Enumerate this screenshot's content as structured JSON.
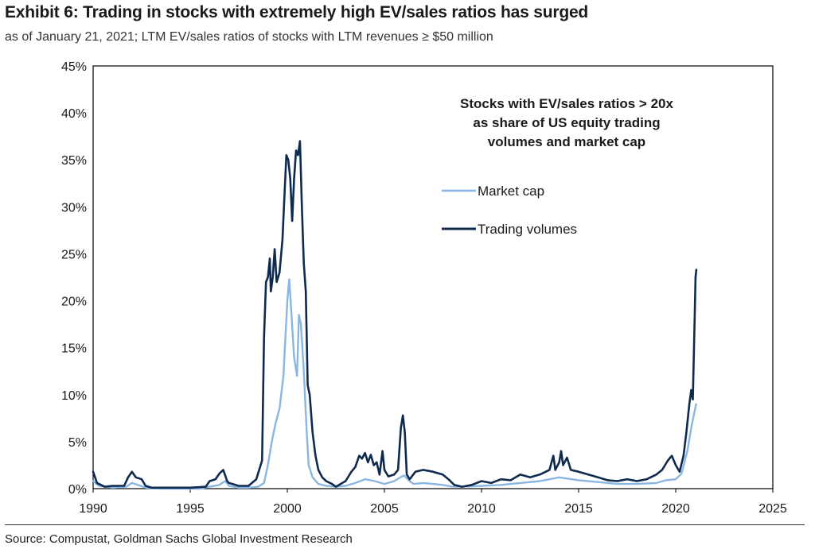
{
  "title": "Exhibit 6: Trading in stocks with extremely high EV/sales ratios has surged",
  "subtitle": "as of January 21, 2021; LTM EV/sales ratios of stocks with LTM revenues ≥ $50 million",
  "source": "Source: Compustat, Goldman Sachs Global Investment Research",
  "colors": {
    "market_cap": "#8ab6e2",
    "trading_volumes": "#0f2a4f",
    "axis": "#000000",
    "text": "#1a1a1a"
  },
  "chart_data": {
    "type": "line",
    "legend_title": [
      "Stocks with EV/sales ratios > 20x",
      "as share of US equity trading",
      "volumes and market cap"
    ],
    "legend_position": "upper-right inside plot",
    "grid": false,
    "xlim": [
      1990,
      2025
    ],
    "ylim": [
      0,
      45
    ],
    "x_ticks": [
      "1990",
      "1995",
      "2000",
      "2005",
      "2010",
      "2015",
      "2020",
      "2025"
    ],
    "y_ticks": [
      "0%",
      "5%",
      "10%",
      "15%",
      "20%",
      "25%",
      "30%",
      "35%",
      "40%",
      "45%"
    ],
    "series": [
      {
        "name": "Market cap",
        "color": "#8ab6e2",
        "points": [
          [
            1990.0,
            0.8
          ],
          [
            1990.3,
            0.3
          ],
          [
            1991.0,
            0.1
          ],
          [
            1991.7,
            0.2
          ],
          [
            1992.0,
            0.6
          ],
          [
            1992.3,
            0.4
          ],
          [
            1992.7,
            0.1
          ],
          [
            1993.5,
            0.0
          ],
          [
            1994.5,
            0.0
          ],
          [
            1995.5,
            0.0
          ],
          [
            1996.0,
            0.2
          ],
          [
            1996.5,
            0.4
          ],
          [
            1996.8,
            0.8
          ],
          [
            1997.0,
            0.3
          ],
          [
            1997.5,
            0.1
          ],
          [
            1998.0,
            0.1
          ],
          [
            1998.5,
            0.2
          ],
          [
            1998.8,
            0.6
          ],
          [
            1999.0,
            2.5
          ],
          [
            1999.2,
            5.0
          ],
          [
            1999.4,
            7.0
          ],
          [
            1999.6,
            8.5
          ],
          [
            1999.8,
            12.0
          ],
          [
            2000.0,
            20.0
          ],
          [
            2000.1,
            22.3
          ],
          [
            2000.2,
            19.0
          ],
          [
            2000.35,
            14.0
          ],
          [
            2000.5,
            12.0
          ],
          [
            2000.6,
            18.5
          ],
          [
            2000.7,
            17.5
          ],
          [
            2000.85,
            12.5
          ],
          [
            2001.0,
            6.0
          ],
          [
            2001.1,
            2.5
          ],
          [
            2001.3,
            1.2
          ],
          [
            2001.6,
            0.5
          ],
          [
            2002.0,
            0.3
          ],
          [
            2002.5,
            0.2
          ],
          [
            2003.0,
            0.3
          ],
          [
            2003.5,
            0.6
          ],
          [
            2004.0,
            1.0
          ],
          [
            2004.5,
            0.8
          ],
          [
            2005.0,
            0.5
          ],
          [
            2005.5,
            0.8
          ],
          [
            2006.0,
            1.4
          ],
          [
            2006.3,
            0.8
          ],
          [
            2006.5,
            0.5
          ],
          [
            2007.0,
            0.6
          ],
          [
            2007.5,
            0.5
          ],
          [
            2008.0,
            0.4
          ],
          [
            2008.5,
            0.2
          ],
          [
            2009.0,
            0.2
          ],
          [
            2010.0,
            0.3
          ],
          [
            2011.0,
            0.4
          ],
          [
            2012.0,
            0.6
          ],
          [
            2013.0,
            0.8
          ],
          [
            2014.0,
            1.2
          ],
          [
            2015.0,
            0.9
          ],
          [
            2016.0,
            0.7
          ],
          [
            2017.0,
            0.5
          ],
          [
            2018.0,
            0.5
          ],
          [
            2019.0,
            0.6
          ],
          [
            2019.5,
            0.9
          ],
          [
            2020.0,
            1.0
          ],
          [
            2020.3,
            1.6
          ],
          [
            2020.6,
            4.0
          ],
          [
            2020.8,
            6.5
          ],
          [
            2020.95,
            8.0
          ],
          [
            2021.05,
            9.0
          ]
        ]
      },
      {
        "name": "Trading volumes",
        "color": "#0f2a4f",
        "points": [
          [
            1990.0,
            1.8
          ],
          [
            1990.2,
            0.6
          ],
          [
            1990.6,
            0.2
          ],
          [
            1991.0,
            0.3
          ],
          [
            1991.6,
            0.3
          ],
          [
            1991.8,
            1.2
          ],
          [
            1992.0,
            1.8
          ],
          [
            1992.2,
            1.2
          ],
          [
            1992.5,
            1.0
          ],
          [
            1992.7,
            0.3
          ],
          [
            1993.0,
            0.1
          ],
          [
            1994.0,
            0.1
          ],
          [
            1995.0,
            0.1
          ],
          [
            1995.8,
            0.2
          ],
          [
            1996.0,
            0.8
          ],
          [
            1996.3,
            1.0
          ],
          [
            1996.5,
            1.6
          ],
          [
            1996.7,
            2.0
          ],
          [
            1996.9,
            0.8
          ],
          [
            1997.0,
            0.6
          ],
          [
            1997.5,
            0.3
          ],
          [
            1998.0,
            0.3
          ],
          [
            1998.4,
            1.0
          ],
          [
            1998.7,
            3.0
          ],
          [
            1998.8,
            16.0
          ],
          [
            1998.9,
            22.0
          ],
          [
            1999.0,
            22.5
          ],
          [
            1999.1,
            24.5
          ],
          [
            1999.15,
            21.0
          ],
          [
            1999.25,
            22.5
          ],
          [
            1999.35,
            25.5
          ],
          [
            1999.45,
            22.0
          ],
          [
            1999.6,
            23.0
          ],
          [
            1999.75,
            26.5
          ],
          [
            1999.85,
            31.0
          ],
          [
            1999.95,
            35.5
          ],
          [
            2000.05,
            35.0
          ],
          [
            2000.15,
            33.0
          ],
          [
            2000.25,
            28.5
          ],
          [
            2000.35,
            33.0
          ],
          [
            2000.45,
            36.0
          ],
          [
            2000.55,
            35.5
          ],
          [
            2000.65,
            37.0
          ],
          [
            2000.75,
            30.0
          ],
          [
            2000.85,
            24.0
          ],
          [
            2000.95,
            21.0
          ],
          [
            2001.05,
            11.0
          ],
          [
            2001.15,
            10.0
          ],
          [
            2001.3,
            6.0
          ],
          [
            2001.45,
            3.5
          ],
          [
            2001.6,
            2.0
          ],
          [
            2001.8,
            1.2
          ],
          [
            2002.0,
            0.8
          ],
          [
            2002.3,
            0.5
          ],
          [
            2002.5,
            0.2
          ],
          [
            2003.0,
            0.8
          ],
          [
            2003.3,
            1.8
          ],
          [
            2003.5,
            2.3
          ],
          [
            2003.7,
            3.5
          ],
          [
            2003.85,
            3.2
          ],
          [
            2004.0,
            3.8
          ],
          [
            2004.15,
            2.8
          ],
          [
            2004.3,
            3.6
          ],
          [
            2004.45,
            2.5
          ],
          [
            2004.6,
            2.8
          ],
          [
            2004.75,
            1.5
          ],
          [
            2004.9,
            4.0
          ],
          [
            2005.0,
            2.0
          ],
          [
            2005.2,
            1.3
          ],
          [
            2005.5,
            1.5
          ],
          [
            2005.7,
            2.0
          ],
          [
            2005.85,
            6.5
          ],
          [
            2005.95,
            7.8
          ],
          [
            2006.05,
            6.0
          ],
          [
            2006.15,
            1.5
          ],
          [
            2006.3,
            1.0
          ],
          [
            2006.6,
            1.8
          ],
          [
            2007.0,
            2.0
          ],
          [
            2007.5,
            1.8
          ],
          [
            2008.0,
            1.5
          ],
          [
            2008.3,
            1.0
          ],
          [
            2008.6,
            0.4
          ],
          [
            2009.0,
            0.2
          ],
          [
            2009.5,
            0.4
          ],
          [
            2010.0,
            0.8
          ],
          [
            2010.5,
            0.6
          ],
          [
            2011.0,
            1.0
          ],
          [
            2011.5,
            0.9
          ],
          [
            2012.0,
            1.5
          ],
          [
            2012.5,
            1.2
          ],
          [
            2013.0,
            1.5
          ],
          [
            2013.5,
            2.0
          ],
          [
            2013.7,
            3.5
          ],
          [
            2013.8,
            2.0
          ],
          [
            2014.0,
            2.8
          ],
          [
            2014.1,
            4.0
          ],
          [
            2014.2,
            2.5
          ],
          [
            2014.4,
            3.3
          ],
          [
            2014.6,
            2.0
          ],
          [
            2015.0,
            1.8
          ],
          [
            2015.5,
            1.5
          ],
          [
            2016.0,
            1.2
          ],
          [
            2016.5,
            0.9
          ],
          [
            2017.0,
            0.8
          ],
          [
            2017.5,
            1.0
          ],
          [
            2018.0,
            0.8
          ],
          [
            2018.5,
            1.0
          ],
          [
            2019.0,
            1.5
          ],
          [
            2019.3,
            2.0
          ],
          [
            2019.6,
            3.0
          ],
          [
            2019.8,
            3.5
          ],
          [
            2020.0,
            2.5
          ],
          [
            2020.2,
            1.8
          ],
          [
            2020.4,
            3.5
          ],
          [
            2020.55,
            6.0
          ],
          [
            2020.7,
            9.0
          ],
          [
            2020.8,
            10.5
          ],
          [
            2020.88,
            9.5
          ],
          [
            2020.93,
            14.0
          ],
          [
            2020.98,
            18.5
          ],
          [
            2021.02,
            22.5
          ],
          [
            2021.06,
            23.3
          ]
        ]
      }
    ]
  }
}
